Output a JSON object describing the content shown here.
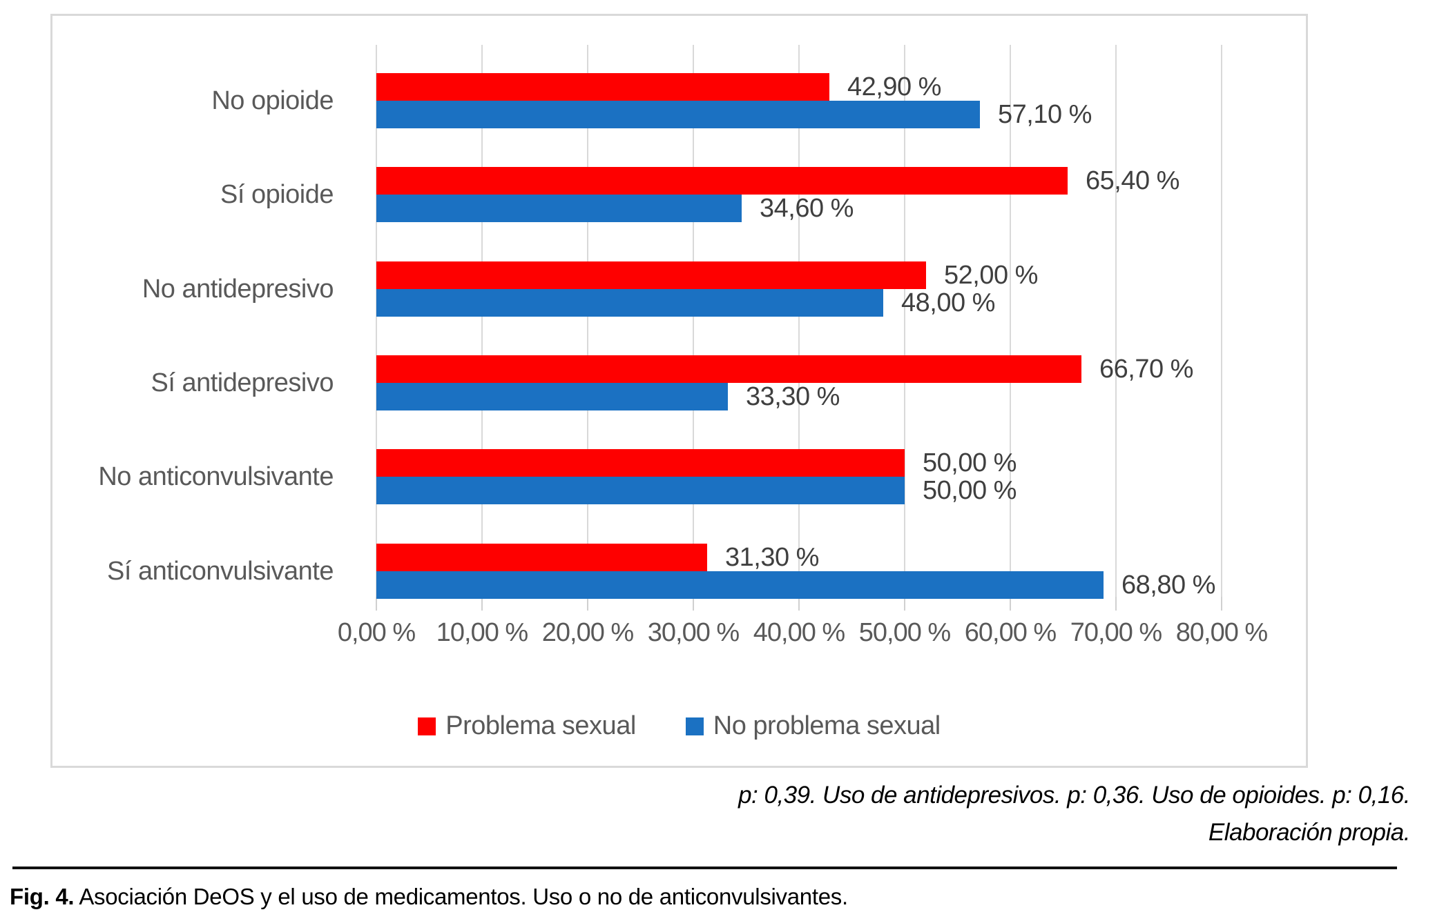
{
  "figure": {
    "caption": {
      "label": "Fig. 4.",
      "text": "Asociación DeOS y el uso de medicamentos. Uso o no de anticonvulsivantes."
    },
    "notes": {
      "line1": "p: 0,39. Uso de antidepresivos. p: 0,36. Uso de opioides. p: 0,16.",
      "line2": "Elaboración propia."
    }
  },
  "chart_data": {
    "type": "bar",
    "orientation": "horizontal",
    "title": "",
    "categories": [
      "No opioide",
      "Sí opioide",
      "No antidepresivo",
      "Sí antidepresivo",
      "No anticonvulsivante",
      "Sí anticonvulsivante"
    ],
    "series": [
      {
        "name": "Problema sexual",
        "color": "#fe0000",
        "values": [
          42.9,
          65.4,
          52.0,
          66.7,
          50.0,
          31.3
        ],
        "value_labels": [
          "42,90 %",
          "65,40 %",
          "52,00 %",
          "66,70 %",
          "50,00 %",
          "31,30 %"
        ]
      },
      {
        "name": "No problema sexual",
        "color": "#1b71c2",
        "values": [
          57.1,
          34.6,
          48.0,
          33.3,
          50.0,
          68.8
        ],
        "value_labels": [
          "57,10 %",
          "34,60 %",
          "48,00 %",
          "33,30 %",
          "50,00 %",
          "68,80 %"
        ]
      }
    ],
    "x_axis": {
      "min": 0,
      "max": 80,
      "tick_step": 10,
      "tick_labels": [
        "0,00 %",
        "10,00 %",
        "20,00 %",
        "30,00 %",
        "40,00 %",
        "50,00 %",
        "60,00 %",
        "70,00 %",
        "80,00 %"
      ]
    },
    "legend_position": "bottom",
    "grid": true,
    "colors": {
      "grid": "#d9d9d9",
      "axis_text": "#595959",
      "data_label_text": "#3f3f3f"
    }
  }
}
